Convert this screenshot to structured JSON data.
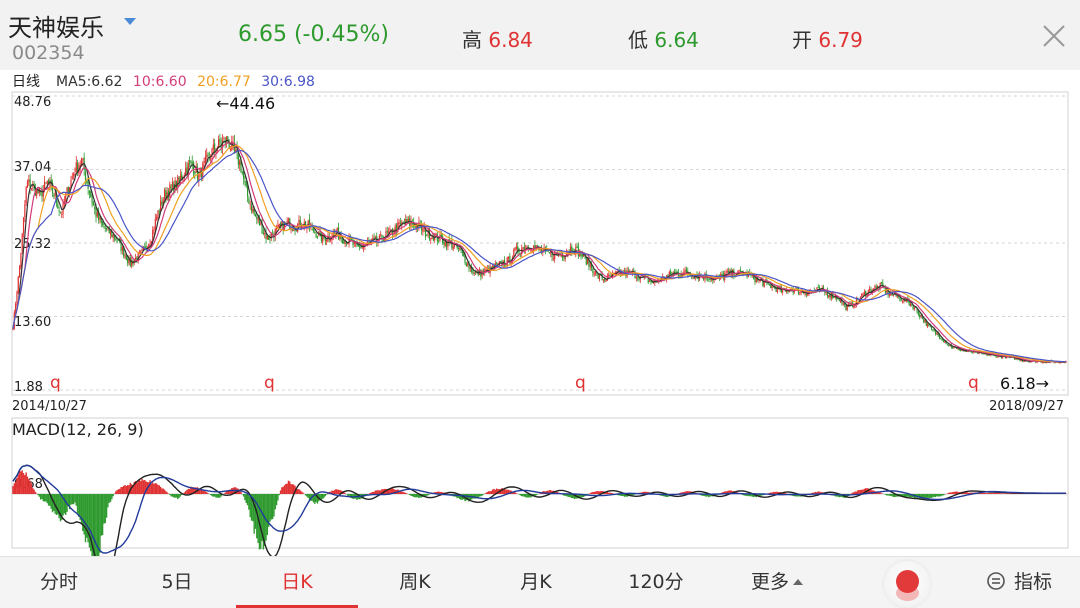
{
  "header": {
    "name": "天神娱乐",
    "code": "002354",
    "price_change": "6.65 (-0.45%)",
    "high_label": "高",
    "high_value": "6.84",
    "low_label": "低",
    "low_value": "6.64",
    "open_label": "开",
    "open_value": "6.79",
    "icons": {
      "dropdown": "dropdown-triangle-icon",
      "close": "close-icon"
    }
  },
  "colors": {
    "up": "#e03232",
    "down": "#2e9a2e",
    "ma5": "#333333",
    "ma10": "#d23c7a",
    "ma20": "#f0a020",
    "ma30": "#4a55c8",
    "dif": "#222222",
    "dea": "#223a9a"
  },
  "chart_data": [
    {
      "type": "candlestick",
      "period_label": "日线",
      "ma_legend": [
        {
          "label": "MA5:6.62",
          "color": "#333333"
        },
        {
          "label": "10:6.60",
          "color": "#d23c7a"
        },
        {
          "label": "20:6.77",
          "color": "#f0a020"
        },
        {
          "label": "30:6.98",
          "color": "#4a55c8"
        }
      ],
      "y_ticks": [
        "48.76",
        "37.04",
        "25.32",
        "13.60",
        "1.88"
      ],
      "ylim": [
        1.88,
        48.76
      ],
      "x_start_label": "2014/10/27",
      "x_end_label": "2018/09/27",
      "max_annotation": "←44.46",
      "min_annotation": "6.18→",
      "markers": [
        "q",
        "q",
        "q",
        "q"
      ],
      "price_path": [
        [
          0,
          12
        ],
        [
          1,
          22
        ],
        [
          2,
          35
        ],
        [
          3,
          34
        ],
        [
          4,
          33
        ],
        [
          5,
          35
        ],
        [
          6,
          33
        ],
        [
          7,
          30
        ],
        [
          8,
          34
        ],
        [
          9,
          37
        ],
        [
          10,
          38.5
        ],
        [
          11,
          34
        ],
        [
          12,
          30
        ],
        [
          13,
          28
        ],
        [
          14,
          27
        ],
        [
          15,
          26
        ],
        [
          16,
          24
        ],
        [
          17,
          22
        ],
        [
          18,
          23
        ],
        [
          19,
          24
        ],
        [
          20,
          26
        ],
        [
          21,
          30
        ],
        [
          22,
          33
        ],
        [
          23,
          34
        ],
        [
          24,
          35
        ],
        [
          25,
          37
        ],
        [
          26,
          38
        ],
        [
          27,
          36
        ],
        [
          28,
          38
        ],
        [
          29,
          40
        ],
        [
          30,
          41
        ],
        [
          31,
          41.8
        ],
        [
          32,
          40
        ],
        [
          33,
          38
        ],
        [
          34,
          33
        ],
        [
          35,
          30
        ],
        [
          36,
          28
        ],
        [
          37,
          26
        ],
        [
          38,
          27
        ],
        [
          39,
          28
        ],
        [
          40,
          28.5
        ],
        [
          41,
          28
        ],
        [
          42,
          28.5
        ],
        [
          43,
          28
        ],
        [
          44,
          27
        ],
        [
          45,
          26
        ],
        [
          46,
          26.5
        ],
        [
          47,
          27
        ],
        [
          48,
          26
        ],
        [
          49,
          25.5
        ],
        [
          50,
          24.5
        ],
        [
          51,
          25
        ],
        [
          52,
          25.5
        ],
        [
          53,
          25.5
        ],
        [
          54,
          26.5
        ],
        [
          55,
          27
        ],
        [
          56,
          28
        ],
        [
          57,
          28.5
        ],
        [
          58,
          28.5
        ],
        [
          59,
          28
        ],
        [
          60,
          27
        ],
        [
          61,
          26.5
        ],
        [
          62,
          26
        ],
        [
          63,
          25.5
        ],
        [
          64,
          25
        ],
        [
          65,
          24
        ],
        [
          66,
          22
        ],
        [
          67,
          20.5
        ],
        [
          68,
          20.5
        ],
        [
          69,
          21
        ],
        [
          70,
          21.5
        ],
        [
          71,
          22
        ],
        [
          72,
          22.5
        ],
        [
          73,
          24
        ],
        [
          74,
          24.5
        ],
        [
          75,
          25
        ],
        [
          76,
          24.5
        ],
        [
          77,
          24
        ],
        [
          78,
          23.5
        ],
        [
          79,
          23.5
        ],
        [
          80,
          23.5
        ],
        [
          81,
          24.5
        ],
        [
          82,
          24
        ],
        [
          83,
          23
        ],
        [
          84,
          21.5
        ],
        [
          85,
          20
        ],
        [
          86,
          19.5
        ],
        [
          87,
          20
        ],
        [
          88,
          20.5
        ],
        [
          89,
          20.5
        ],
        [
          90,
          20.5
        ],
        [
          91,
          20
        ],
        [
          92,
          19.5
        ],
        [
          93,
          19
        ],
        [
          94,
          19.5
        ],
        [
          95,
          20
        ],
        [
          96,
          20.5
        ],
        [
          97,
          20.5
        ],
        [
          98,
          20.5
        ],
        [
          99,
          20.2
        ],
        [
          100,
          20
        ],
        [
          101,
          20
        ],
        [
          102,
          19.5
        ],
        [
          103,
          20
        ],
        [
          104,
          20.5
        ],
        [
          105,
          20.5
        ],
        [
          106,
          20.5
        ],
        [
          107,
          20.2
        ],
        [
          108,
          19.5
        ],
        [
          109,
          19
        ],
        [
          110,
          18.5
        ],
        [
          111,
          18
        ],
        [
          112,
          17.5
        ],
        [
          113,
          18
        ],
        [
          114,
          17.7
        ],
        [
          115,
          17.5
        ],
        [
          116,
          17.5
        ],
        [
          117,
          17.8
        ],
        [
          118,
          17.5
        ],
        [
          119,
          17
        ],
        [
          120,
          16.5
        ],
        [
          121,
          15
        ],
        [
          122,
          15.5
        ],
        [
          123,
          16.5
        ],
        [
          124,
          17.5
        ],
        [
          125,
          18
        ],
        [
          126,
          18.5
        ],
        [
          127,
          17.5
        ],
        [
          128,
          17
        ],
        [
          129,
          16.5
        ],
        [
          130,
          16
        ],
        [
          131,
          15
        ],
        [
          132,
          13.5
        ],
        [
          133,
          12
        ],
        [
          134,
          11
        ],
        [
          135,
          10
        ],
        [
          136,
          9
        ],
        [
          137,
          8.5
        ],
        [
          138,
          8.2
        ],
        [
          139,
          8
        ],
        [
          140,
          7.8
        ],
        [
          141,
          7.6
        ],
        [
          142,
          7.5
        ],
        [
          143,
          7.3
        ],
        [
          144,
          7.2
        ],
        [
          145,
          7
        ],
        [
          146,
          6.8
        ],
        [
          147,
          6.6
        ],
        [
          148,
          6.5
        ],
        [
          149,
          6.5
        ],
        [
          150,
          6.4
        ],
        [
          151,
          6.4
        ],
        [
          152,
          6.3
        ],
        [
          153,
          6.5
        ]
      ]
    },
    {
      "type": "macd",
      "title": "MACD(12, 26, 9)",
      "zero_label": "0.68",
      "hist_path": [
        [
          0,
          1.5
        ],
        [
          1,
          5
        ],
        [
          2,
          4
        ],
        [
          3,
          1
        ],
        [
          4,
          -1
        ],
        [
          5,
          -2
        ],
        [
          6,
          -4
        ],
        [
          7,
          -6
        ],
        [
          8,
          -3
        ],
        [
          9,
          -2
        ],
        [
          10,
          -6
        ],
        [
          11,
          -12
        ],
        [
          12,
          -16
        ],
        [
          13,
          -8
        ],
        [
          14,
          -2
        ],
        [
          15,
          0.8
        ],
        [
          16,
          1.5
        ],
        [
          17,
          2
        ],
        [
          18,
          2.5
        ],
        [
          19,
          2.8
        ],
        [
          20,
          2.5
        ],
        [
          21,
          2
        ],
        [
          22,
          1
        ],
        [
          23,
          -0.5
        ],
        [
          24,
          -1
        ],
        [
          25,
          0.5
        ],
        [
          26,
          1.5
        ],
        [
          27,
          1.2
        ],
        [
          28,
          0.5
        ],
        [
          29,
          -0.5
        ],
        [
          30,
          -0.8
        ],
        [
          31,
          0.5
        ],
        [
          32,
          1.5
        ],
        [
          33,
          0.8
        ],
        [
          34,
          -2
        ],
        [
          35,
          -7
        ],
        [
          36,
          -12
        ],
        [
          37,
          -8
        ],
        [
          38,
          -4
        ],
        [
          39,
          1.5
        ],
        [
          40,
          2.5
        ],
        [
          41,
          1.5
        ],
        [
          42,
          0.5
        ],
        [
          43,
          -1
        ],
        [
          44,
          -2
        ],
        [
          45,
          -1
        ],
        [
          46,
          0.5
        ],
        [
          47,
          1
        ],
        [
          48,
          0.5
        ],
        [
          49,
          -0.8
        ],
        [
          50,
          -1.2
        ],
        [
          51,
          -0.6
        ],
        [
          52,
          0.3
        ],
        [
          53,
          0.8
        ],
        [
          54,
          1
        ],
        [
          55,
          1.2
        ],
        [
          56,
          0.8
        ],
        [
          57,
          0.3
        ],
        [
          58,
          -0.5
        ],
        [
          59,
          -0.8
        ],
        [
          60,
          -0.5
        ],
        [
          61,
          0.3
        ],
        [
          62,
          0.5
        ],
        [
          63,
          0.2
        ],
        [
          64,
          -0.5
        ],
        [
          65,
          -1
        ],
        [
          66,
          -1.5
        ],
        [
          67,
          -1
        ],
        [
          68,
          -0.5
        ],
        [
          69,
          0.5
        ],
        [
          70,
          1
        ],
        [
          71,
          1.2
        ],
        [
          72,
          0.8
        ],
        [
          73,
          0.3
        ],
        [
          74,
          -0.5
        ],
        [
          75,
          -0.8
        ],
        [
          76,
          -0.3
        ],
        [
          77,
          0.5
        ],
        [
          78,
          0.8
        ],
        [
          79,
          0.5
        ],
        [
          80,
          -0.3
        ],
        [
          81,
          -0.8
        ],
        [
          82,
          -1
        ],
        [
          83,
          -0.5
        ],
        [
          84,
          0.3
        ],
        [
          85,
          0.6
        ],
        [
          86,
          0.5
        ],
        [
          87,
          0.2
        ],
        [
          88,
          -0.3
        ],
        [
          89,
          -0.6
        ],
        [
          90,
          -0.3
        ],
        [
          91,
          0.3
        ],
        [
          92,
          0.5
        ],
        [
          93,
          0.2
        ],
        [
          94,
          -0.3
        ],
        [
          95,
          -0.6
        ],
        [
          96,
          -0.3
        ],
        [
          97,
          0.3
        ],
        [
          98,
          0.6
        ],
        [
          99,
          0.4
        ],
        [
          100,
          -0.3
        ],
        [
          101,
          -0.6
        ],
        [
          102,
          -0.4
        ],
        [
          103,
          0.3
        ],
        [
          104,
          0.8
        ],
        [
          105,
          0.5
        ],
        [
          106,
          -0.2
        ],
        [
          107,
          -0.5
        ],
        [
          108,
          -0.6
        ],
        [
          109,
          -0.3
        ],
        [
          110,
          0.3
        ],
        [
          111,
          0.5
        ],
        [
          112,
          0.3
        ],
        [
          113,
          -0.3
        ],
        [
          114,
          -0.6
        ],
        [
          115,
          -0.4
        ],
        [
          116,
          0.2
        ],
        [
          117,
          0.5
        ],
        [
          118,
          0.3
        ],
        [
          119,
          -0.3
        ],
        [
          120,
          -0.6
        ],
        [
          121,
          -0.8
        ],
        [
          122,
          0.3
        ],
        [
          123,
          0.8
        ],
        [
          124,
          1.2
        ],
        [
          125,
          0.8
        ],
        [
          126,
          0.3
        ],
        [
          127,
          -0.3
        ],
        [
          128,
          -0.6
        ],
        [
          129,
          -0.5
        ],
        [
          130,
          -0.6
        ],
        [
          131,
          -0.8
        ],
        [
          132,
          -1
        ],
        [
          133,
          -0.8
        ],
        [
          134,
          -0.6
        ],
        [
          135,
          -0.4
        ],
        [
          136,
          0.3
        ],
        [
          137,
          0.5
        ],
        [
          138,
          0.4
        ],
        [
          139,
          0.3
        ],
        [
          140,
          0.3
        ],
        [
          141,
          0.2
        ],
        [
          142,
          0.2
        ],
        [
          143,
          0.2
        ],
        [
          144,
          0.1
        ],
        [
          145,
          0.1
        ],
        [
          146,
          0.1
        ],
        [
          147,
          0.1
        ],
        [
          148,
          0.1
        ],
        [
          149,
          0.1
        ],
        [
          150,
          0.1
        ],
        [
          151,
          0.1
        ],
        [
          152,
          0.1
        ],
        [
          153,
          0.1
        ]
      ]
    }
  ],
  "tabs": [
    {
      "label": "分时",
      "active": false
    },
    {
      "label": "5日",
      "active": false
    },
    {
      "label": "日K",
      "active": true
    },
    {
      "label": "周K",
      "active": false
    },
    {
      "label": "月K",
      "active": false
    },
    {
      "label": "120分",
      "active": false
    },
    {
      "label": "更多",
      "active": false
    }
  ],
  "toolbar": {
    "indicator_label": "指标",
    "indicator_icon": "indicator-settings-icon",
    "record_icon": "record-icon",
    "more_icon": "caret-up-icon"
  }
}
